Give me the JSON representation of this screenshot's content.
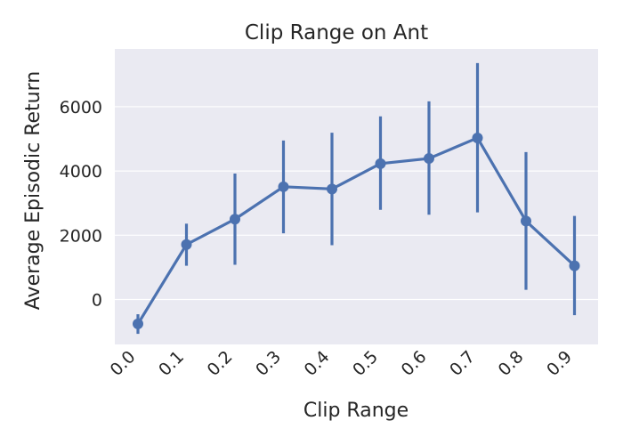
{
  "chart_data": {
    "type": "line",
    "title": "Clip Range on Ant",
    "xlabel": "Clip Range",
    "ylabel": "Average Episodic Return",
    "categories": [
      "0.0",
      "0.1",
      "0.2",
      "0.3",
      "0.4",
      "0.5",
      "0.6",
      "0.7",
      "0.8",
      "0.9"
    ],
    "series": [
      {
        "values": [
          -760,
          1710,
          2500,
          3510,
          3440,
          4230,
          4390,
          5030,
          2440,
          1050
        ],
        "error_low": [
          -1070,
          1050,
          1080,
          2060,
          1690,
          2790,
          2640,
          2710,
          300,
          -490
        ],
        "error_high": [
          -460,
          2360,
          3920,
          4950,
          5190,
          5700,
          6170,
          7360,
          4590,
          2600
        ]
      }
    ],
    "yticks": [
      0,
      2000,
      4000,
      6000
    ],
    "ylim": [
      -1400,
      7800
    ],
    "grid": true,
    "colors": {
      "line": "#4c72b0",
      "background": "#eaeaf2",
      "grid": "#ffffff"
    }
  }
}
